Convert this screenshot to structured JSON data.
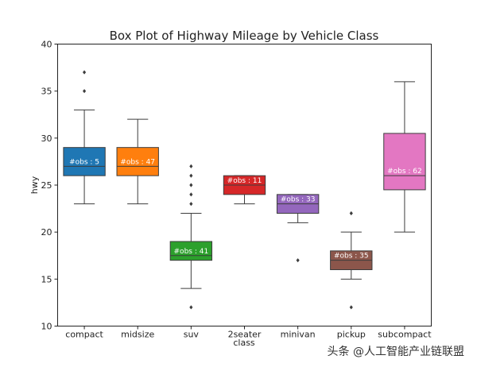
{
  "chart_data": {
    "type": "box",
    "title": "Box Plot of Highway Mileage by Vehicle Class",
    "xlabel": "class",
    "ylabel": "hwy",
    "ylim": [
      10,
      40
    ],
    "yticks": [
      10,
      15,
      20,
      25,
      30,
      35,
      40
    ],
    "grid": false,
    "legend": "none",
    "categories": [
      "compact",
      "midsize",
      "suv",
      "2seater",
      "minivan",
      "pickup",
      "subcompact"
    ],
    "boxes": [
      {
        "category": "compact",
        "label": "#obs : 5",
        "color": "#1f77b4",
        "whisker_low": 23,
        "q1": 26,
        "median": 27,
        "q3": 29,
        "whisker_high": 33,
        "outliers": [
          35,
          37
        ]
      },
      {
        "category": "midsize",
        "label": "#obs : 47",
        "color": "#ff7f0e",
        "whisker_low": 23,
        "q1": 26,
        "median": 27,
        "q3": 29,
        "whisker_high": 32,
        "outliers": []
      },
      {
        "category": "suv",
        "label": "#obs : 41",
        "color": "#2ca02c",
        "whisker_low": 14,
        "q1": 17,
        "median": 17.5,
        "q3": 19,
        "whisker_high": 22,
        "outliers": [
          12,
          23,
          24,
          25,
          26,
          27
        ]
      },
      {
        "category": "2seater",
        "label": "#obs : 11",
        "color": "#d62728",
        "whisker_low": 23,
        "q1": 24,
        "median": 25,
        "q3": 26,
        "whisker_high": 26,
        "outliers": []
      },
      {
        "category": "minivan",
        "label": "#obs : 33",
        "color": "#9467bd",
        "whisker_low": 21,
        "q1": 22,
        "median": 23,
        "q3": 24,
        "whisker_high": 24,
        "outliers": [
          17
        ]
      },
      {
        "category": "pickup",
        "label": "#obs : 35",
        "color": "#8c564b",
        "whisker_low": 15,
        "q1": 16,
        "median": 17,
        "q3": 18,
        "whisker_high": 20,
        "outliers": [
          12,
          22
        ]
      },
      {
        "category": "subcompact",
        "label": "#obs : 62",
        "color": "#e377c2",
        "whisker_low": 20,
        "q1": 24.5,
        "median": 26,
        "q3": 30.5,
        "whisker_high": 36,
        "outliers": []
      }
    ]
  },
  "watermark": "头条 @人工智能产业链联盟"
}
